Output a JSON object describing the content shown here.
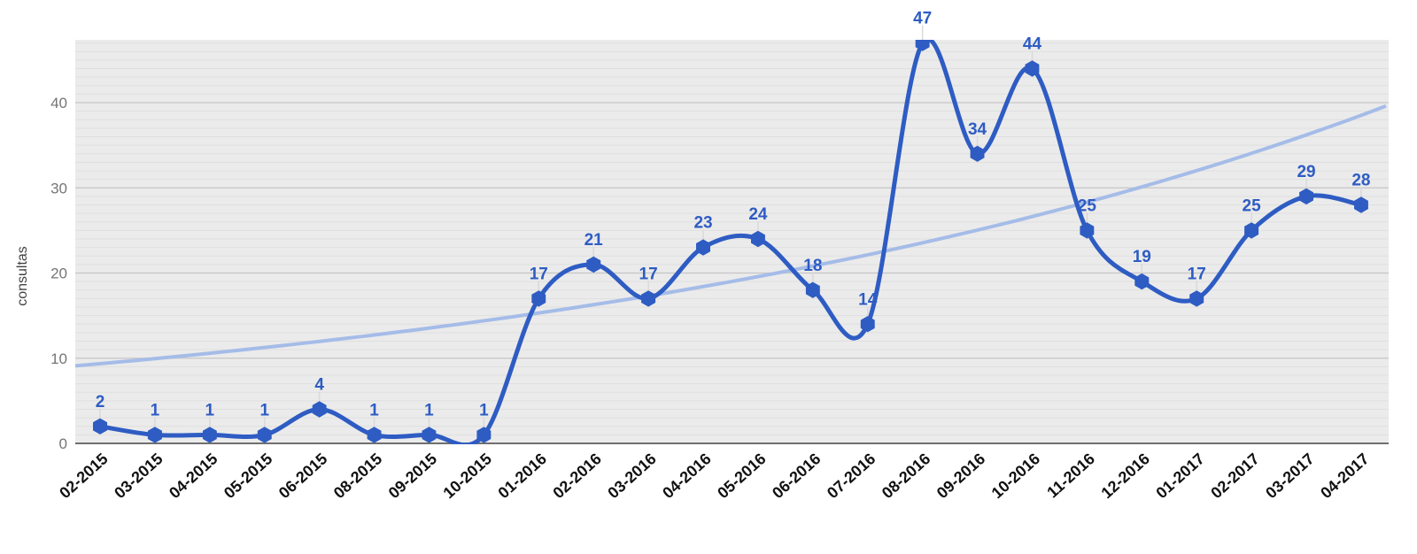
{
  "chart_data": {
    "type": "line",
    "title": "",
    "xlabel": "",
    "ylabel": "consultas",
    "legend": "none",
    "grid": true,
    "categories": [
      "02-2015",
      "03-2015",
      "04-2015",
      "05-2015",
      "06-2015",
      "08-2015",
      "09-2015",
      "10-2015",
      "01-2016",
      "02-2016",
      "03-2016",
      "04-2016",
      "05-2016",
      "06-2016",
      "07-2016",
      "08-2016",
      "09-2016",
      "10-2016",
      "11-2016",
      "12-2016",
      "01-2017",
      "02-2017",
      "03-2017",
      "04-2017"
    ],
    "series": [
      {
        "name": "consultas",
        "type": "line",
        "curve": "smooth",
        "point_shape": "hexagon",
        "data_labels": true,
        "color": "#2e5cc3",
        "values": [
          2,
          1,
          1,
          1,
          4,
          1,
          1,
          1,
          17,
          21,
          17,
          23,
          24,
          18,
          14,
          47,
          34,
          44,
          25,
          19,
          17,
          25,
          29,
          28
        ]
      }
    ],
    "trendline": {
      "applies_to": "consultas",
      "type": "exponential",
      "color": "#a5bce8",
      "start_value": 9.1,
      "end_value": 39.6
    },
    "y_axis": {
      "ticks": [
        0,
        10,
        20,
        30,
        40
      ],
      "min": 0,
      "max": 47.3,
      "minor_grid_step": 1
    },
    "colors": {
      "plot_background": "#ebebeb",
      "page_background": "#ffffff",
      "minor_gridline": "#dfdfdf",
      "major_gridline": "#c6c6c6",
      "baseline": "#6f6f6f",
      "y_tick_text": "#757575",
      "x_tick_text": "#111111",
      "axis_title_text": "#424242",
      "label_stem": "#d9d9d9"
    }
  }
}
